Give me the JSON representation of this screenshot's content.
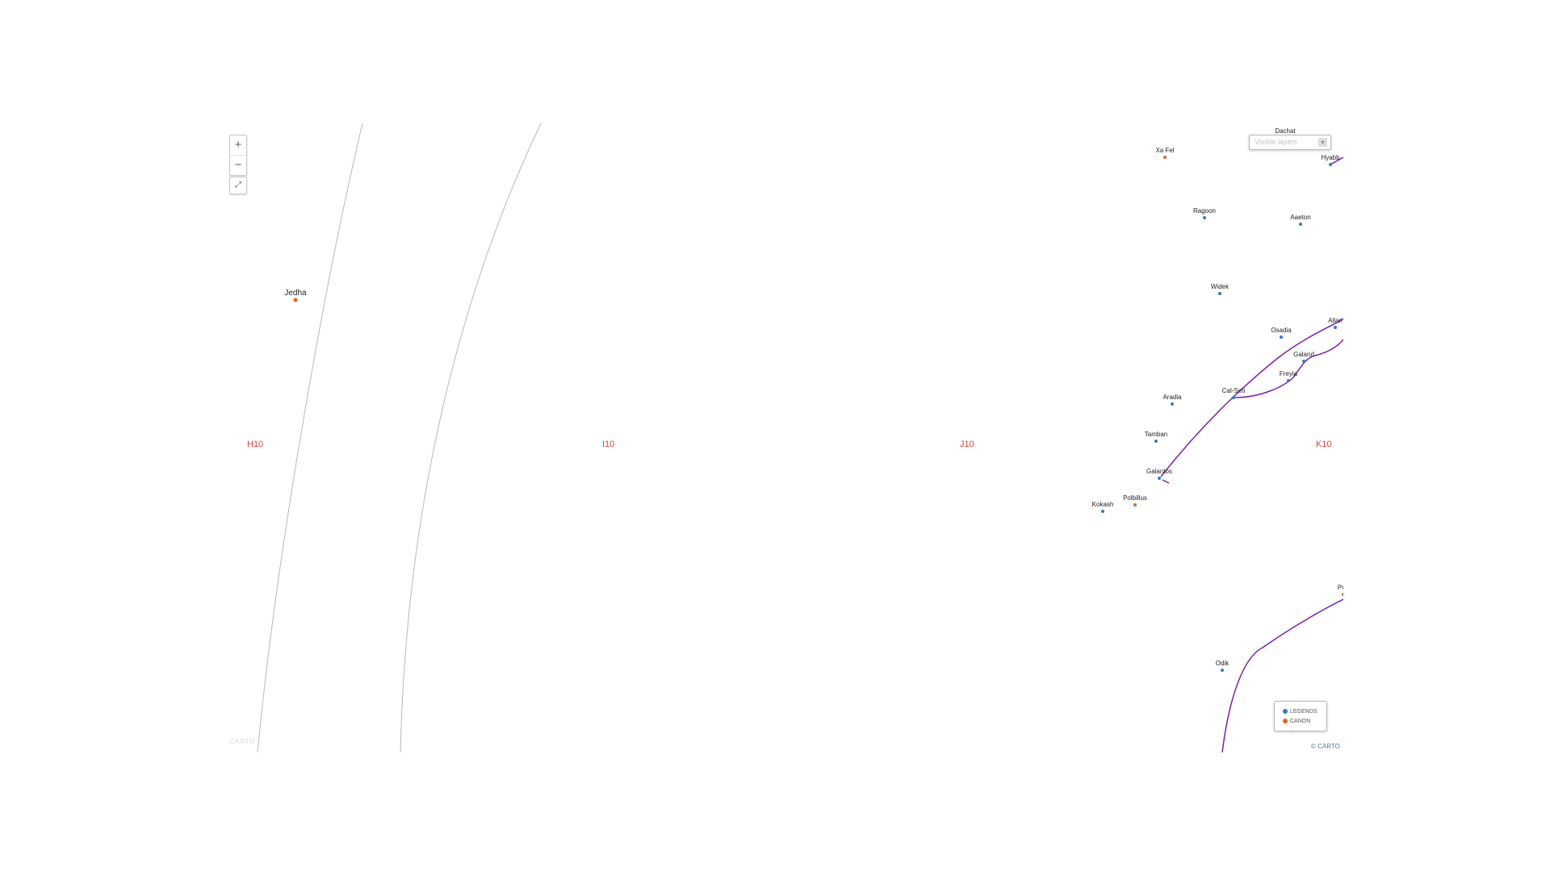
{
  "map": {
    "controls": {
      "zoom_in": "+",
      "zoom_out": "−",
      "fullscreen_glyph": "⤢"
    },
    "layers_selector": {
      "placeholder": "Visible layers",
      "chevron": "▾"
    },
    "legend": [
      {
        "label": "LEGENDS",
        "color": "#2e7cc4"
      },
      {
        "label": "CANON",
        "color": "#e8651f"
      }
    ],
    "attribution": "© CARTO",
    "watermark": "CARTO",
    "grid_labels": [
      "H10",
      "I10",
      "J10",
      "K10"
    ],
    "colors": {
      "legends": "#2e7cc4",
      "canon": "#e8651f",
      "hyperlane": "#7b1fb5",
      "region_border": "#b8b8b8",
      "grid_label": "#e0403a"
    },
    "planets": [
      {
        "name": "Jedha",
        "type": "canon"
      },
      {
        "name": "Xa Fel",
        "type": "canon"
      },
      {
        "name": "Dachat",
        "type": "legends"
      },
      {
        "name": "Hyabb",
        "type": "legends"
      },
      {
        "name": "Ragoon",
        "type": "legends"
      },
      {
        "name": "Aaeton",
        "type": "legends"
      },
      {
        "name": "Widek",
        "type": "legends"
      },
      {
        "name": "Allan",
        "type": "legends"
      },
      {
        "name": "Osadia",
        "type": "legends"
      },
      {
        "name": "Galand",
        "type": "legends"
      },
      {
        "name": "Freyia",
        "type": "legends"
      },
      {
        "name": "Cal-Seti",
        "type": "legends"
      },
      {
        "name": "Aradia",
        "type": "legends"
      },
      {
        "name": "Tamban",
        "type": "legends"
      },
      {
        "name": "Galantos",
        "type": "legends"
      },
      {
        "name": "Polbillus",
        "type": "canon"
      },
      {
        "name": "Kokash",
        "type": "legends"
      },
      {
        "name": "Pral",
        "type": "canon"
      },
      {
        "name": "Odik",
        "type": "legends"
      }
    ]
  }
}
